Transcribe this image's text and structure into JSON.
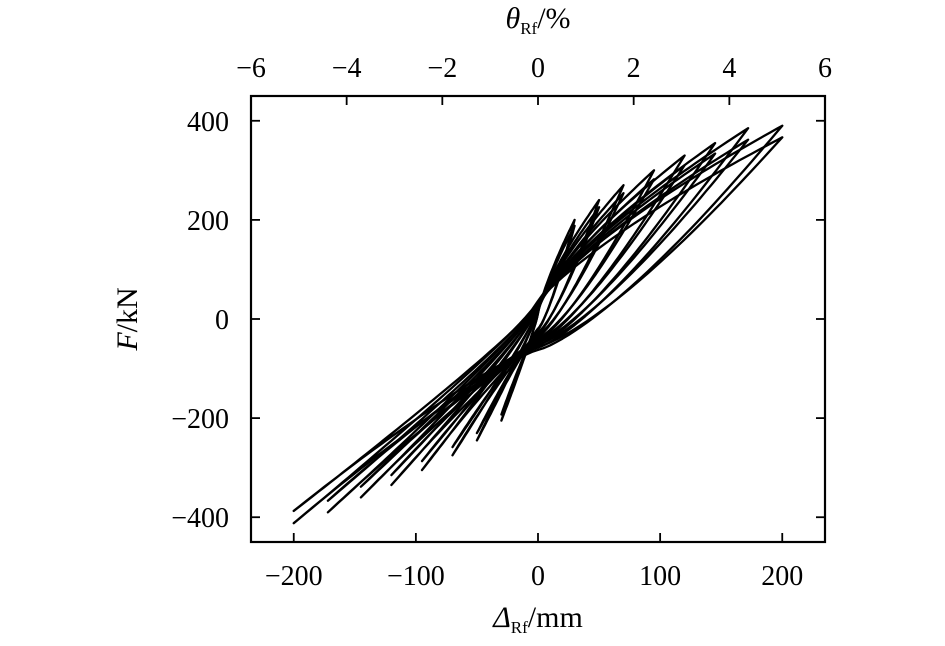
{
  "chart_data": {
    "type": "line",
    "xlabel_bottom": {
      "symbol": "Δ",
      "sub": "Rf",
      "unit": "/mm"
    },
    "xlabel_top": {
      "symbol": "θ",
      "sub": "Rf",
      "unit": "/%"
    },
    "ylabel": {
      "symbol": "F",
      "unit": "/kN"
    },
    "xlim": [
      -235,
      235
    ],
    "ylim": [
      -450,
      450
    ],
    "x_ticks": [
      -200,
      -100,
      0,
      100,
      200
    ],
    "x_tick_labels": [
      "−200",
      "−100",
      "0",
      "100",
      "200"
    ],
    "top_ticks": [
      -6,
      -4,
      -2,
      0,
      2,
      4,
      6
    ],
    "top_tick_labels": [
      "−6",
      "−4",
      "−2",
      "0",
      "2",
      "4",
      "6"
    ],
    "top_scale_mm_per_unit": 39.17,
    "y_ticks": [
      -400,
      -200,
      0,
      200,
      400
    ],
    "y_tick_labels": [
      "−400",
      "−200",
      "0",
      "200",
      "400"
    ],
    "grid": false,
    "loops": [
      {
        "amplitude": 30,
        "peak_pos": 200,
        "peak_neg": -205,
        "residual": 18,
        "cycles": 2
      },
      {
        "amplitude": 50,
        "peak_pos": 240,
        "peak_neg": -245,
        "residual": 25,
        "cycles": 2
      },
      {
        "amplitude": 70,
        "peak_pos": 270,
        "peak_neg": -275,
        "residual": 30,
        "cycles": 2
      },
      {
        "amplitude": 95,
        "peak_pos": 300,
        "peak_neg": -305,
        "residual": 36,
        "cycles": 2
      },
      {
        "amplitude": 120,
        "peak_pos": 330,
        "peak_neg": -335,
        "residual": 40,
        "cycles": 2
      },
      {
        "amplitude": 145,
        "peak_pos": 355,
        "peak_neg": -360,
        "residual": 44,
        "cycles": 2
      },
      {
        "amplitude": 172,
        "peak_pos": 385,
        "peak_neg": -390,
        "residual": 48,
        "cycles": 2
      },
      {
        "amplitude": 200,
        "peak_pos": 390,
        "peak_neg": -412,
        "residual": 52,
        "cycles": 2
      }
    ]
  }
}
